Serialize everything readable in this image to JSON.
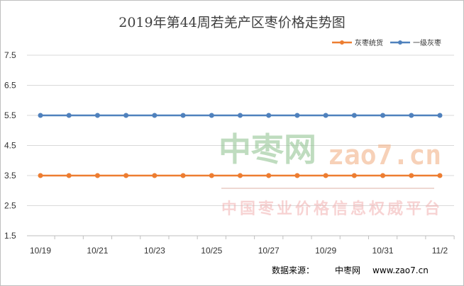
{
  "chart_data": {
    "type": "line",
    "title": "2019年第44周若羌产区枣价格走势图",
    "xlabel": "",
    "ylabel": "",
    "categories": [
      "10/19",
      "10/20",
      "10/21",
      "10/22",
      "10/23",
      "10/24",
      "10/25",
      "10/26",
      "10/27",
      "10/28",
      "10/29",
      "10/30",
      "10/31",
      "11/1",
      "11/2"
    ],
    "x_tick_labels": [
      "10/19",
      "10/21",
      "10/23",
      "10/25",
      "10/27",
      "10/29",
      "10/31",
      "11/2"
    ],
    "y_ticks": [
      1.5,
      2.5,
      3.5,
      4.5,
      5.5,
      6.5,
      7.5
    ],
    "y_tick_labels": [
      "1.5",
      "2.5",
      "3.5",
      "4.5",
      "5.5",
      "6.5",
      "7.5"
    ],
    "ylim": [
      1.5,
      7.5
    ],
    "grid": true,
    "legend_position": "top-right",
    "series": [
      {
        "name": "灰枣统货",
        "color": "#ed7d31",
        "values": [
          3.5,
          3.5,
          3.5,
          3.5,
          3.5,
          3.5,
          3.5,
          3.5,
          3.5,
          3.5,
          3.5,
          3.5,
          3.5,
          3.5,
          3.5
        ]
      },
      {
        "name": "一级灰枣",
        "color": "#4f81bd",
        "values": [
          5.5,
          5.5,
          5.5,
          5.5,
          5.5,
          5.5,
          5.5,
          5.5,
          5.5,
          5.5,
          5.5,
          5.5,
          5.5,
          5.5,
          5.5
        ]
      }
    ]
  },
  "watermark": {
    "brand": "中枣网",
    "domain": "zao7.cn",
    "subtitle": "中国枣业价格信息权威平台"
  },
  "source": {
    "label": "数据来源：",
    "name": "中枣网",
    "url": "www.zao7.cn"
  }
}
